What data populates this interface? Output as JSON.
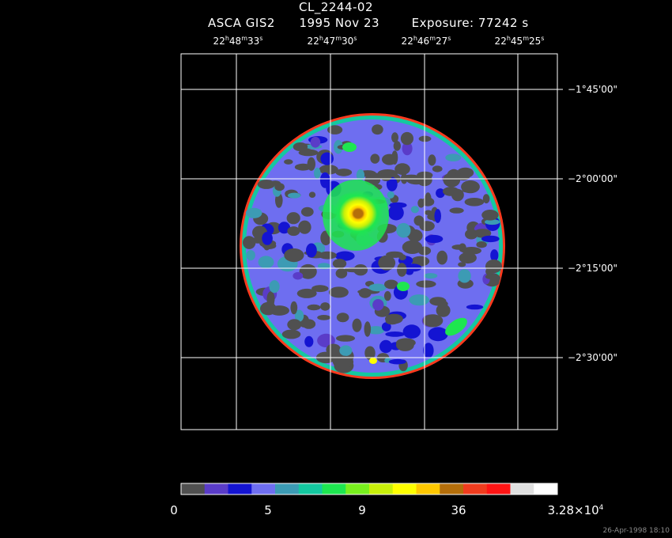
{
  "header": {
    "title": "CL_2244-02",
    "instrument": "ASCA GIS2",
    "date": "1995 Nov 23",
    "exposure": "Exposure: 77242 s"
  },
  "ra_labels": [
    {
      "h": "22",
      "m": "48",
      "s": "33"
    },
    {
      "h": "22",
      "m": "47",
      "s": "30"
    },
    {
      "h": "22",
      "m": "46",
      "s": "27"
    },
    {
      "h": "22",
      "m": "45",
      "s": "25"
    }
  ],
  "ra_units": {
    "h": "h",
    "m": "m",
    "s": "s"
  },
  "dec_labels": [
    "−1°45'00\"",
    "−2°00'00\"",
    "−2°15'00\"",
    "−2°30'00\""
  ],
  "colorbar": {
    "colors": [
      "#505050",
      "#5a3cc8",
      "#1414d2",
      "#6e6ef0",
      "#3c9bb4",
      "#14c8a0",
      "#1ee650",
      "#78f01e",
      "#c8f00a",
      "#ffff00",
      "#ffc800",
      "#b46e0a",
      "#f03c1e",
      "#ff1414",
      "#e0e0e0",
      "#ffffff"
    ],
    "labels": [
      "0",
      "5",
      "9",
      "36"
    ],
    "max_mantissa": "3.28×10",
    "max_exponent": "4"
  },
  "timestamp": "26-Apr-1998 18:10"
}
